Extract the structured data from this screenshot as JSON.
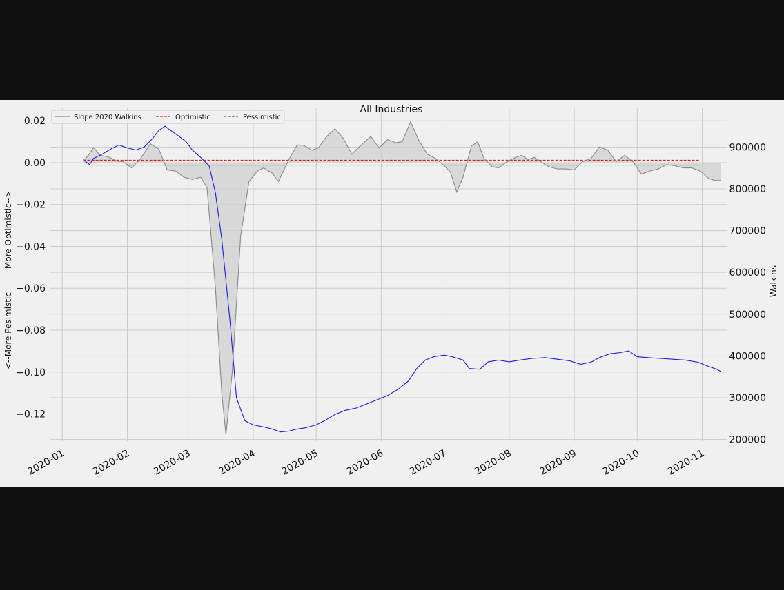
{
  "chart_data": {
    "type": "line",
    "title": "All Industries",
    "ylabel_left_top": "More Optimistic-->",
    "ylabel_left_bottom": "<--More Pesimistic",
    "ylabel_right": "Walkins",
    "xlabel": "",
    "x_ticks": [
      "2020-01",
      "2020-02",
      "2020-03",
      "2020-04",
      "2020-05",
      "2020-06",
      "2020-07",
      "2020-08",
      "2020-09",
      "2020-10",
      "2020-11"
    ],
    "y_left_ticks": [
      "0.02",
      "0.00",
      "−0.02",
      "−0.04",
      "−0.06",
      "−0.08",
      "−0.10",
      "−0.12"
    ],
    "y_left_tick_values": [
      0.02,
      0.0,
      -0.02,
      -0.04,
      -0.06,
      -0.08,
      -0.1,
      -0.12
    ],
    "y_right_ticks": [
      "900000",
      "800000",
      "700000",
      "600000",
      "500000",
      "400000",
      "300000",
      "200000"
    ],
    "y_right_tick_values": [
      900000,
      800000,
      700000,
      600000,
      500000,
      400000,
      300000,
      200000
    ],
    "xlim": [
      "2019-12-26",
      "2020-11-13"
    ],
    "ylim_left": [
      -0.133,
      0.026
    ],
    "ylim_right": [
      196000,
      993000
    ],
    "grid": true,
    "legend": {
      "placement": "top-left",
      "entries": [
        {
          "label": "Slope 2020 Walkins",
          "color": "#888888",
          "style": "solid"
        },
        {
          "label": "Optimistic",
          "color": "#dd0000",
          "style": "dashed"
        },
        {
          "label": "Pessimistic",
          "color": "#007700",
          "style": "dashed"
        }
      ]
    },
    "colors": {
      "slope": "#888888",
      "slope_fill": "#d0d0d0",
      "walkins": "#1a1adb",
      "optimistic": "#dd0000",
      "pessimistic": "#007700"
    },
    "thresholds": {
      "optimistic": 0.0012,
      "pessimistic": -0.0012,
      "start": "2020-01-11",
      "end": "2020-10-31"
    },
    "series": [
      {
        "name": "Slope 2020 Walkins",
        "axis": "left",
        "points": [
          [
            "2020-01-11",
            0.0005
          ],
          [
            "2020-01-13",
            0.003
          ],
          [
            "2020-01-16",
            0.0072
          ],
          [
            "2020-01-19",
            0.0035
          ],
          [
            "2020-01-23",
            0.0028
          ],
          [
            "2020-01-27",
            0.0008
          ],
          [
            "2020-01-30",
            0.0005
          ],
          [
            "2020-02-03",
            -0.0025
          ],
          [
            "2020-02-07",
            0.0015
          ],
          [
            "2020-02-12",
            0.009
          ],
          [
            "2020-02-16",
            0.0065
          ],
          [
            "2020-02-20",
            -0.0035
          ],
          [
            "2020-02-24",
            -0.004
          ],
          [
            "2020-02-28",
            -0.007
          ],
          [
            "2020-03-03",
            -0.008
          ],
          [
            "2020-03-07",
            -0.007
          ],
          [
            "2020-03-10",
            -0.012
          ],
          [
            "2020-03-14",
            -0.06
          ],
          [
            "2020-03-17",
            -0.11
          ],
          [
            "2020-03-19",
            -0.13
          ],
          [
            "2020-03-22",
            -0.1
          ],
          [
            "2020-03-26",
            -0.035
          ],
          [
            "2020-03-30",
            -0.009
          ],
          [
            "2020-04-03",
            -0.004
          ],
          [
            "2020-04-06",
            -0.0025
          ],
          [
            "2020-04-10",
            -0.005
          ],
          [
            "2020-04-13",
            -0.009
          ],
          [
            "2020-04-18",
            0.0015
          ],
          [
            "2020-04-22",
            0.0085
          ],
          [
            "2020-04-25",
            0.0083
          ],
          [
            "2020-04-29",
            0.006
          ],
          [
            "2020-05-02",
            0.007
          ],
          [
            "2020-05-06",
            0.0125
          ],
          [
            "2020-05-10",
            0.0162
          ],
          [
            "2020-05-14",
            0.0115
          ],
          [
            "2020-05-18",
            0.004
          ],
          [
            "2020-05-22",
            0.008
          ],
          [
            "2020-05-27",
            0.0125
          ],
          [
            "2020-05-31",
            0.007
          ],
          [
            "2020-06-04",
            0.011
          ],
          [
            "2020-06-08",
            0.0095
          ],
          [
            "2020-06-11",
            0.01
          ],
          [
            "2020-06-15",
            0.0195
          ],
          [
            "2020-06-19",
            0.0105
          ],
          [
            "2020-06-23",
            0.004
          ],
          [
            "2020-06-27",
            0.002
          ],
          [
            "2020-07-01",
            -0.0015
          ],
          [
            "2020-07-04",
            -0.0045
          ],
          [
            "2020-07-07",
            -0.014
          ],
          [
            "2020-07-10",
            -0.007
          ],
          [
            "2020-07-14",
            0.008
          ],
          [
            "2020-07-17",
            0.01
          ],
          [
            "2020-07-20",
            0.002
          ],
          [
            "2020-07-24",
            -0.002
          ],
          [
            "2020-07-27",
            -0.0025
          ],
          [
            "2020-07-31",
            0.0005
          ],
          [
            "2020-08-04",
            0.0025
          ],
          [
            "2020-08-07",
            0.0035
          ],
          [
            "2020-08-10",
            0.0015
          ],
          [
            "2020-08-13",
            0.0025
          ],
          [
            "2020-08-16",
            0.0005
          ],
          [
            "2020-08-20",
            -0.002
          ],
          [
            "2020-08-24",
            -0.003
          ],
          [
            "2020-08-28",
            -0.003
          ],
          [
            "2020-09-01",
            -0.0035
          ],
          [
            "2020-09-05",
            0.0005
          ],
          [
            "2020-09-09",
            0.002
          ],
          [
            "2020-09-13",
            0.0075
          ],
          [
            "2020-09-17",
            0.006
          ],
          [
            "2020-09-21",
            0.0005
          ],
          [
            "2020-09-25",
            0.0035
          ],
          [
            "2020-09-29",
            0.0005
          ],
          [
            "2020-10-03",
            -0.0055
          ],
          [
            "2020-10-07",
            -0.004
          ],
          [
            "2020-10-11",
            -0.003
          ],
          [
            "2020-10-15",
            -0.001
          ],
          [
            "2020-10-19",
            -0.0015
          ],
          [
            "2020-10-23",
            -0.0025
          ],
          [
            "2020-10-27",
            -0.0025
          ],
          [
            "2020-10-31",
            -0.004
          ],
          [
            "2020-11-04",
            -0.0075
          ],
          [
            "2020-11-07",
            -0.0085
          ],
          [
            "2020-11-10",
            -0.0085
          ]
        ]
      },
      {
        "name": "Walkins",
        "axis": "right",
        "points": [
          [
            "2020-01-11",
            870000
          ],
          [
            "2020-01-14",
            858000
          ],
          [
            "2020-01-16",
            873000
          ],
          [
            "2020-01-20",
            883000
          ],
          [
            "2020-01-24",
            895000
          ],
          [
            "2020-01-28",
            905000
          ],
          [
            "2020-02-01",
            898000
          ],
          [
            "2020-02-05",
            893000
          ],
          [
            "2020-02-09",
            900000
          ],
          [
            "2020-02-13",
            920000
          ],
          [
            "2020-02-16",
            940000
          ],
          [
            "2020-02-19",
            950000
          ],
          [
            "2020-02-21",
            942000
          ],
          [
            "2020-02-25",
            928000
          ],
          [
            "2020-02-29",
            913000
          ],
          [
            "2020-03-03",
            893000
          ],
          [
            "2020-03-07",
            875000
          ],
          [
            "2020-03-11",
            855000
          ],
          [
            "2020-03-14",
            790000
          ],
          [
            "2020-03-17",
            680000
          ],
          [
            "2020-03-21",
            480000
          ],
          [
            "2020-03-24",
            300000
          ],
          [
            "2020-03-28",
            245000
          ],
          [
            "2020-04-01",
            235000
          ],
          [
            "2020-04-06",
            230000
          ],
          [
            "2020-04-10",
            225000
          ],
          [
            "2020-04-14",
            218000
          ],
          [
            "2020-04-18",
            220000
          ],
          [
            "2020-04-22",
            225000
          ],
          [
            "2020-04-26",
            228000
          ],
          [
            "2020-05-01",
            235000
          ],
          [
            "2020-05-05",
            245000
          ],
          [
            "2020-05-10",
            260000
          ],
          [
            "2020-05-15",
            270000
          ],
          [
            "2020-05-20",
            275000
          ],
          [
            "2020-05-25",
            285000
          ],
          [
            "2020-05-30",
            295000
          ],
          [
            "2020-06-04",
            305000
          ],
          [
            "2020-06-09",
            320000
          ],
          [
            "2020-06-14",
            340000
          ],
          [
            "2020-06-18",
            370000
          ],
          [
            "2020-06-22",
            390000
          ],
          [
            "2020-06-26",
            398000
          ],
          [
            "2020-07-01",
            402000
          ],
          [
            "2020-07-05",
            398000
          ],
          [
            "2020-07-10",
            390000
          ],
          [
            "2020-07-13",
            370000
          ],
          [
            "2020-07-18",
            368000
          ],
          [
            "2020-07-22",
            386000
          ],
          [
            "2020-07-27",
            390000
          ],
          [
            "2020-08-01",
            386000
          ],
          [
            "2020-08-06",
            390000
          ],
          [
            "2020-08-12",
            394000
          ],
          [
            "2020-08-18",
            396000
          ],
          [
            "2020-08-24",
            392000
          ],
          [
            "2020-08-30",
            388000
          ],
          [
            "2020-09-04",
            380000
          ],
          [
            "2020-09-09",
            385000
          ],
          [
            "2020-09-13",
            396000
          ],
          [
            "2020-09-18",
            405000
          ],
          [
            "2020-09-23",
            408000
          ],
          [
            "2020-09-27",
            412000
          ],
          [
            "2020-10-01",
            398000
          ],
          [
            "2020-10-06",
            396000
          ],
          [
            "2020-10-12",
            394000
          ],
          [
            "2020-10-18",
            392000
          ],
          [
            "2020-10-24",
            390000
          ],
          [
            "2020-10-30",
            385000
          ],
          [
            "2020-11-04",
            375000
          ],
          [
            "2020-11-08",
            368000
          ],
          [
            "2020-11-10",
            362000
          ]
        ]
      }
    ]
  }
}
